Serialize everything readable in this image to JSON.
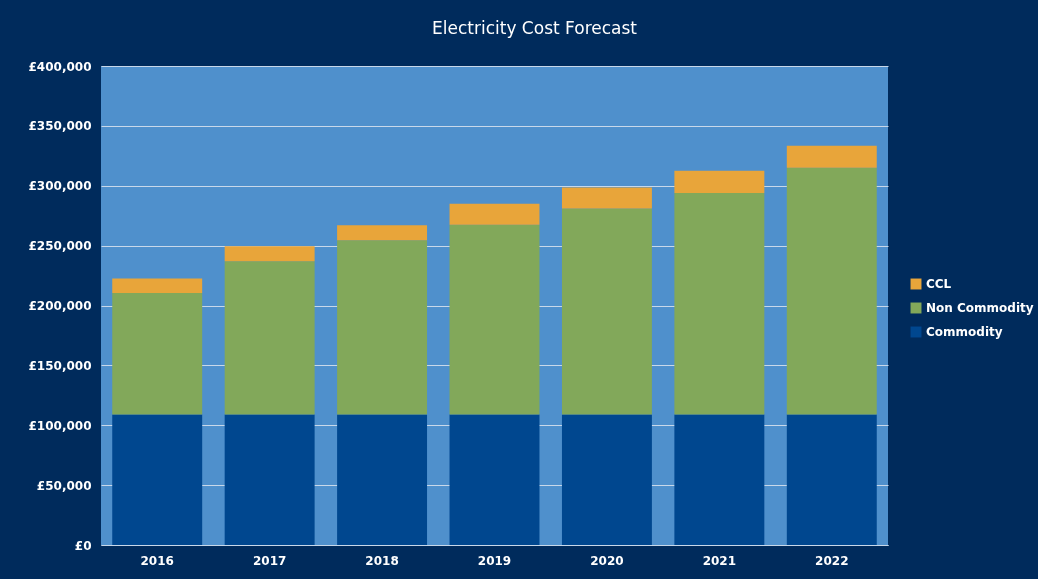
{
  "chart_data": {
    "type": "bar",
    "title": "Electricity Cost Forecast",
    "stacked": true,
    "categories": [
      "2016",
      "2017",
      "2018",
      "2019",
      "2020",
      "2021",
      "2022"
    ],
    "series": [
      {
        "name": "Commodity",
        "color": "#00478f",
        "values": [
          109000,
          109000,
          109000,
          109000,
          109000,
          109000,
          109000
        ]
      },
      {
        "name": "Non Commodity",
        "color": "#82a85a",
        "values": [
          101500,
          128000,
          145500,
          158500,
          172000,
          185000,
          206000
        ]
      },
      {
        "name": "CCL",
        "color": "#e8a53a",
        "values": [
          12000,
          12500,
          12500,
          17500,
          17500,
          18500,
          18500
        ]
      }
    ],
    "ylim": [
      0,
      400000
    ],
    "yticks": [
      {
        "value": 0,
        "label": "£0"
      },
      {
        "value": 50000,
        "label": "£50,000"
      },
      {
        "value": 100000,
        "label": "£100,000"
      },
      {
        "value": 150000,
        "label": "£150,000"
      },
      {
        "value": 200000,
        "label": "£200,000"
      },
      {
        "value": 250000,
        "label": "£250,000"
      },
      {
        "value": 300000,
        "label": "£300,000"
      },
      {
        "value": 350000,
        "label": "£350,000"
      },
      {
        "value": 400000,
        "label": "£400,000"
      }
    ],
    "grid": "y",
    "legend": "right"
  }
}
